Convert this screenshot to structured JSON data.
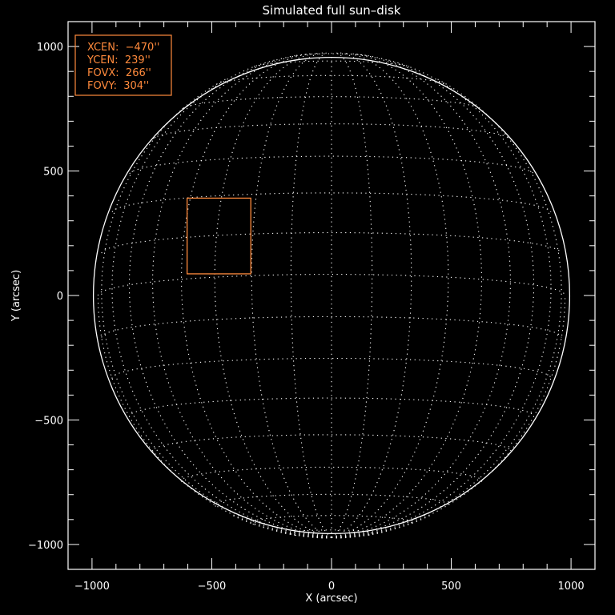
{
  "chart_data": {
    "type": "scatter",
    "title": "Simulated full sun–disk",
    "xlabel": "X (arcsec)",
    "ylabel": "Y (arcsec)",
    "xlim": [
      -1100,
      1100
    ],
    "ylim": [
      -1100,
      1100
    ],
    "xticks": [
      -1000,
      -500,
      0,
      500,
      1000
    ],
    "xtick_labels": [
      "−1000",
      "−500",
      "0",
      "500",
      "1000"
    ],
    "yticks": [
      -1000,
      -500,
      0,
      500,
      1000
    ],
    "ytick_labels": [
      "−1000",
      "−500",
      "0",
      "500",
      "1000"
    ],
    "minor_tick_step": 100,
    "solar_radius_arcsec": 975,
    "grid_spacing_deg": 10,
    "field_of_view": {
      "xcen": -470,
      "ycen": 239,
      "fovx": 266,
      "fovy": 304
    },
    "legend": {
      "placement": "top-left",
      "lines": [
        "XCEN:  −470''",
        "YCEN:  239''",
        "FOVX:  266''",
        "FOVY:  304''"
      ]
    },
    "colors": {
      "background": "#000000",
      "foreground": "#ffffff",
      "highlight": "#ff8a3c"
    }
  }
}
